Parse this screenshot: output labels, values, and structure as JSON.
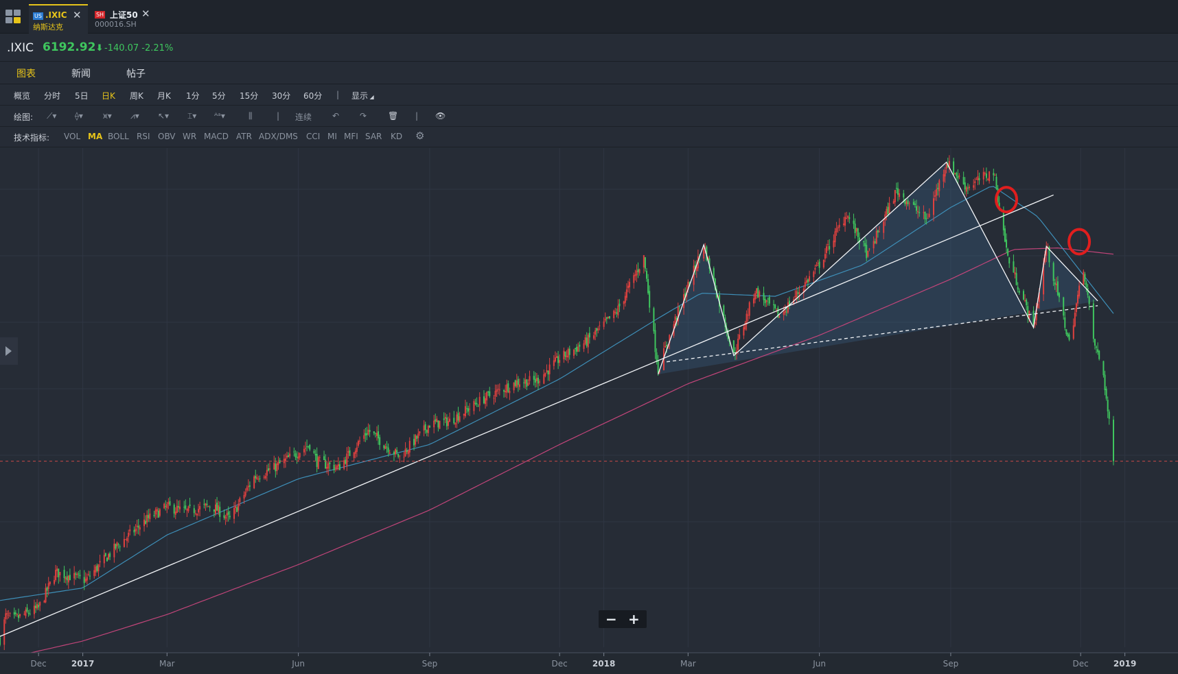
{
  "tabs": [
    {
      "flag": "US",
      "name": ".IXIC",
      "sub": "纳斯达克"
    },
    {
      "flag": "SH",
      "name": "上证50",
      "sub": "000016.SH"
    }
  ],
  "quote": {
    "symbol": ".IXIC",
    "price": "6192.92",
    "arrow": "⬇",
    "change": "-140.07 -2.21%"
  },
  "nav": [
    "图表",
    "新闻",
    "帖子"
  ],
  "periods": [
    "概览",
    "分时",
    "5日",
    "日K",
    "周K",
    "月K",
    "1分",
    "5分",
    "15分",
    "30分",
    "60分",
    "显示"
  ],
  "drawing": {
    "label": "绘图:",
    "mode": "连续"
  },
  "indicators": {
    "label": "技术指标:",
    "items": [
      "VOL",
      "MA",
      "BOLL",
      "RSI",
      "OBV",
      "WR",
      "MACD",
      "ATR",
      "ADX/DMS",
      "CCI",
      "MI",
      "MFI",
      "SAR",
      "KD"
    ]
  },
  "colors": {
    "up": "#e0413f",
    "down": "#3fc65e",
    "ma_short": "#3e8fb8",
    "ma_long": "#c2457a",
    "accent": "#e7c41a",
    "bg": "#262c36"
  },
  "chart_data": {
    "type": "candlestick",
    "series": [
      {
        "values": []
      }
    ],
    "ylim": [
      5000,
      8200
    ],
    "price_line": 6192.92,
    "x_ticks": [
      {
        "label": "Dec",
        "date": "2016-12-01"
      },
      {
        "label": "2017",
        "date": "2017-01-01"
      },
      {
        "label": "Mar",
        "date": "2017-03-01"
      },
      {
        "label": "Jun",
        "date": "2017-06-01"
      },
      {
        "label": "Sep",
        "date": "2017-09-01"
      },
      {
        "label": "Dec",
        "date": "2017-12-01"
      },
      {
        "label": "2018",
        "date": "2018-01-01"
      },
      {
        "label": "Mar",
        "date": "2018-03-01"
      },
      {
        "label": "Jun",
        "date": "2018-06-01"
      },
      {
        "label": "Sep",
        "date": "2018-09-01"
      },
      {
        "label": "Dec",
        "date": "2018-12-01"
      },
      {
        "label": "2019",
        "date": "2019-01-01"
      }
    ],
    "path": [
      [
        "2016-11-04",
        5050
      ],
      [
        "2016-11-08",
        5200
      ],
      [
        "2016-11-14",
        5180
      ],
      [
        "2016-12-01",
        5250
      ],
      [
        "2016-12-13",
        5480
      ],
      [
        "2017-01-03",
        5430
      ],
      [
        "2017-01-25",
        5650
      ],
      [
        "2017-02-15",
        5820
      ],
      [
        "2017-03-01",
        5900
      ],
      [
        "2017-03-15",
        5870
      ],
      [
        "2017-04-01",
        5910
      ],
      [
        "2017-04-14",
        5820
      ],
      [
        "2017-05-01",
        6090
      ],
      [
        "2017-05-15",
        6150
      ],
      [
        "2017-06-09",
        6300
      ],
      [
        "2017-06-14",
        6190
      ],
      [
        "2017-06-29",
        6150
      ],
      [
        "2017-07-20",
        6390
      ],
      [
        "2017-08-11",
        6220
      ],
      [
        "2017-09-01",
        6430
      ],
      [
        "2017-09-15",
        6450
      ],
      [
        "2017-10-10",
        6600
      ],
      [
        "2017-11-01",
        6700
      ],
      [
        "2017-11-15",
        6710
      ],
      [
        "2017-12-01",
        6850
      ],
      [
        "2017-12-20",
        6960
      ],
      [
        "2018-01-10",
        7150
      ],
      [
        "2018-01-29",
        7500
      ],
      [
        "2018-02-08",
        6780
      ],
      [
        "2018-02-20",
        7100
      ],
      [
        "2018-03-12",
        7580
      ],
      [
        "2018-04-02",
        6870
      ],
      [
        "2018-04-17",
        7290
      ],
      [
        "2018-05-04",
        7120
      ],
      [
        "2018-05-31",
        7440
      ],
      [
        "2018-06-20",
        7780
      ],
      [
        "2018-07-05",
        7510
      ],
      [
        "2018-07-25",
        7930
      ],
      [
        "2018-08-15",
        7740
      ],
      [
        "2018-08-29",
        8110
      ],
      [
        "2018-09-12",
        7950
      ],
      [
        "2018-10-01",
        8050
      ],
      [
        "2018-10-11",
        7500
      ],
      [
        "2018-10-29",
        7050
      ],
      [
        "2018-11-07",
        7570
      ],
      [
        "2018-11-23",
        6950
      ],
      [
        "2018-12-03",
        7440
      ],
      [
        "2018-12-10",
        6970
      ],
      [
        "2018-12-17",
        6750
      ],
      [
        "2018-12-24",
        6192.92
      ]
    ],
    "ma_short": [
      [
        "2016-11-04",
        5300
      ],
      [
        "2017-01-01",
        5380
      ],
      [
        "2017-03-01",
        5720
      ],
      [
        "2017-06-01",
        6080
      ],
      [
        "2017-09-01",
        6300
      ],
      [
        "2017-12-01",
        6720
      ],
      [
        "2018-02-10",
        7120
      ],
      [
        "2018-03-10",
        7270
      ],
      [
        "2018-05-01",
        7250
      ],
      [
        "2018-07-01",
        7450
      ],
      [
        "2018-09-01",
        7820
      ],
      [
        "2018-09-30",
        7960
      ],
      [
        "2018-11-01",
        7760
      ],
      [
        "2018-12-24",
        7140
      ]
    ],
    "ma_long": [
      [
        "2016-11-04",
        4920
      ],
      [
        "2017-01-01",
        5040
      ],
      [
        "2017-03-01",
        5210
      ],
      [
        "2017-06-01",
        5530
      ],
      [
        "2017-09-01",
        5880
      ],
      [
        "2017-12-01",
        6300
      ],
      [
        "2018-03-01",
        6690
      ],
      [
        "2018-06-01",
        7000
      ],
      [
        "2018-09-01",
        7360
      ],
      [
        "2018-10-15",
        7550
      ],
      [
        "2018-11-15",
        7560
      ],
      [
        "2018-12-24",
        7520
      ]
    ],
    "drawings": [
      {
        "kind": "line",
        "dashed": false,
        "points": [
          [
            "2016-11-04",
            5070
          ],
          [
            "2018-11-12",
            7900
          ]
        ]
      },
      {
        "kind": "line",
        "dashed": true,
        "points": [
          [
            "2018-02-14",
            6830
          ],
          [
            "2018-12-13",
            7190
          ]
        ]
      },
      {
        "kind": "polyline",
        "dashed": false,
        "points": [
          [
            "2018-02-08",
            6750
          ],
          [
            "2018-03-12",
            7580
          ],
          [
            "2018-04-02",
            6870
          ],
          [
            "2018-08-29",
            8110
          ],
          [
            "2018-10-29",
            7050
          ],
          [
            "2018-11-07",
            7570
          ],
          [
            "2018-12-13",
            7220
          ]
        ]
      }
    ],
    "markers": [
      {
        "kind": "ellipse",
        "date": "2018-10-10",
        "value": 7870
      },
      {
        "kind": "ellipse",
        "date": "2018-11-30",
        "value": 7600
      }
    ]
  }
}
